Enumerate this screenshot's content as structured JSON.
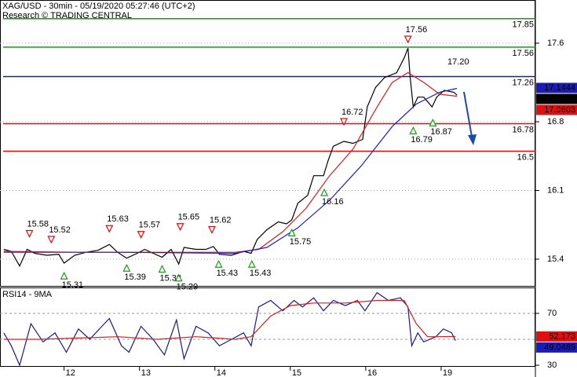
{
  "chart_data": [
    {
      "type": "line",
      "title": "XAG/USD - 30min - 05/19/2020 05:27:46 (UTC+2)",
      "subtitle": "Research © TRADING CENTRAL",
      "xlim": [
        0.15,
        7.25
      ],
      "ylim": [
        15.12,
        18.04
      ],
      "yticks": [
        17.6,
        16.8,
        16.1,
        15.4
      ],
      "grid": true,
      "series": [
        {
          "color": "#000000",
          "x": [
            0.2,
            0.3,
            0.41,
            0.51,
            0.61,
            0.77,
            0.93,
            1.0,
            1.14,
            1.29,
            1.45,
            1.6,
            1.71,
            1.83,
            1.97,
            2.07,
            2.18,
            2.3,
            2.42,
            2.52,
            2.59,
            2.75,
            2.88,
            2.98,
            3.06,
            3.22,
            3.38,
            3.48,
            3.56,
            3.69,
            3.84,
            3.95,
            4.02,
            4.1,
            4.23,
            4.31,
            4.44,
            4.5,
            4.57,
            4.71,
            4.83,
            4.96,
            5.02,
            5.13,
            5.25,
            5.41,
            5.51,
            5.56,
            5.59,
            5.63,
            5.69,
            5.77,
            5.88,
            5.94,
            6.04,
            6.17,
            6.21
          ],
          "values": [
            15.5,
            15.48,
            15.33,
            15.5,
            15.46,
            15.44,
            15.45,
            15.36,
            15.44,
            15.47,
            15.49,
            15.55,
            15.47,
            15.41,
            15.46,
            15.5,
            15.46,
            15.42,
            15.5,
            15.35,
            15.52,
            15.5,
            15.5,
            15.53,
            15.45,
            15.44,
            15.48,
            15.46,
            15.6,
            15.7,
            15.78,
            15.76,
            15.8,
            15.97,
            16.05,
            16.25,
            16.25,
            16.4,
            16.55,
            16.6,
            16.58,
            16.62,
            16.95,
            17.15,
            17.25,
            17.3,
            17.45,
            17.55,
            17.25,
            16.95,
            17.05,
            17.05,
            16.95,
            17.05,
            17.12,
            17.1,
            17.07
          ]
        },
        {
          "color": "#d42020",
          "x": [
            0.2,
            1.19,
            2.23,
            3.27,
            3.58,
            3.9,
            4.21,
            4.52,
            4.83,
            5.15,
            5.35,
            5.56,
            5.77,
            5.98,
            6.21
          ],
          "values": [
            15.48,
            15.47,
            15.47,
            15.47,
            15.5,
            15.68,
            15.92,
            16.25,
            16.52,
            16.95,
            17.2,
            17.3,
            17.2,
            17.08,
            17.06
          ]
        },
        {
          "color": "#2020c0",
          "x": [
            0.2,
            1.71,
            3.27,
            3.69,
            4.1,
            4.52,
            4.94,
            5.35,
            5.67,
            5.98,
            6.21
          ],
          "values": [
            15.47,
            15.47,
            15.46,
            15.52,
            15.72,
            16.0,
            16.35,
            16.75,
            16.98,
            17.1,
            17.14
          ]
        }
      ],
      "levels": [
        {
          "value": 17.85,
          "color": "#1e9a1e"
        },
        {
          "value": 17.56,
          "color": "#1e9a1e"
        },
        {
          "value": 17.26,
          "color": "#1c1ca8"
        },
        {
          "value": 16.78,
          "color": "#d41010"
        },
        {
          "value": 16.5,
          "color": "#d41010"
        }
      ],
      "pivot_highs": {
        "color": "#d41010",
        "x": [
          0.54,
          0.83,
          1.6,
          2.02,
          2.54,
          2.96,
          4.71,
          5.56
        ],
        "values": [
          15.58,
          15.52,
          15.63,
          15.57,
          15.65,
          15.62,
          16.72,
          17.56
        ]
      },
      "pivot_lows": {
        "color": "#1e9a1e",
        "x": [
          1.0,
          1.83,
          2.3,
          2.52,
          3.05,
          3.49,
          4.02,
          4.45,
          5.63,
          5.89
        ],
        "values": [
          15.31,
          15.39,
          15.38,
          15.29,
          15.43,
          15.43,
          15.75,
          16.16,
          16.79,
          16.87
        ]
      },
      "last_label": {
        "x": 6.23,
        "value": 17.2,
        "label": "17.20"
      },
      "price_tags": [
        {
          "value": 17.1444,
          "color": "#1c1cb4"
        },
        {
          "value": 17.069,
          "color": "#000000"
        },
        {
          "value": 17.0603,
          "color": "#e01010"
        }
      ]
    },
    {
      "type": "line",
      "title": "RSI14 - 9MA",
      "xlim": [
        0.15,
        7.25
      ],
      "xticks": [
        {
          "value": 1,
          "label": "12"
        },
        {
          "value": 2,
          "label": "13"
        },
        {
          "value": 3,
          "label": "14"
        },
        {
          "value": 4,
          "label": "15"
        },
        {
          "value": 5,
          "label": "16"
        },
        {
          "value": 6,
          "label": "19"
        }
      ],
      "ylim": [
        28.8,
        89.4
      ],
      "yticks": [
        70,
        30
      ],
      "reference_lines": [
        70,
        50
      ],
      "series": [
        {
          "color": "#1a1a8c",
          "x": [
            0.2,
            0.3,
            0.41,
            0.56,
            0.72,
            0.88,
            1.03,
            1.19,
            1.34,
            1.5,
            1.6,
            1.76,
            1.86,
            2.02,
            2.18,
            2.33,
            2.49,
            2.59,
            2.75,
            2.91,
            3.06,
            3.22,
            3.38,
            3.48,
            3.58,
            3.74,
            3.9,
            4.05,
            4.16,
            4.31,
            4.44,
            4.57,
            4.73,
            4.89,
            4.99,
            5.15,
            5.3,
            5.46,
            5.56,
            5.61,
            5.69,
            5.77,
            5.93,
            6.03,
            6.14,
            6.19
          ],
          "values": [
            55,
            45,
            30,
            62,
            48,
            55,
            40,
            58,
            50,
            60,
            66,
            45,
            40,
            60,
            50,
            38,
            65,
            35,
            60,
            55,
            45,
            50,
            55,
            45,
            75,
            80,
            72,
            80,
            75,
            82,
            72,
            80,
            76,
            80,
            72,
            86,
            80,
            82,
            75,
            45,
            55,
            48,
            52,
            58,
            55,
            49.0489
          ]
        },
        {
          "color": "#d42020",
          "x": [
            0.2,
            0.67,
            1.19,
            1.71,
            2.23,
            2.75,
            3.27,
            3.48,
            3.74,
            4.0,
            4.31,
            4.73,
            5.15,
            5.51,
            5.67,
            5.82,
            5.98,
            6.19
          ],
          "values": [
            50,
            50,
            51,
            52,
            50,
            52,
            50,
            52,
            68,
            76,
            78,
            78,
            80,
            80,
            62,
            52,
            52,
            52.173
          ]
        }
      ],
      "value_tags": [
        {
          "value": 52.173,
          "color": "#e01010"
        },
        {
          "value": 49.0489,
          "color": "#1c1cb4"
        }
      ]
    }
  ]
}
